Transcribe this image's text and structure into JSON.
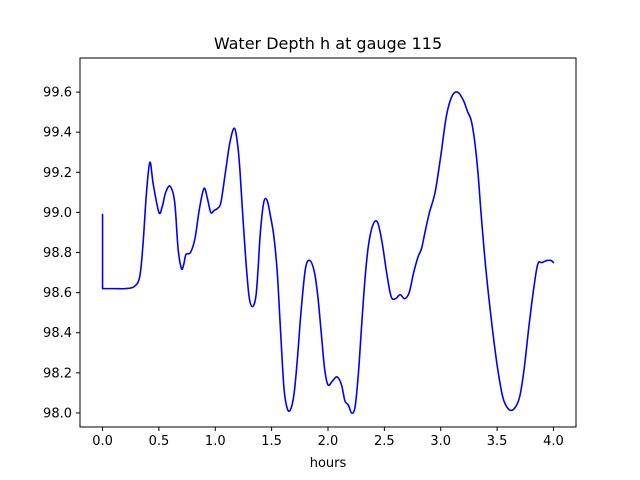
{
  "chart_data": {
    "type": "line",
    "title": "Water Depth h at gauge 115",
    "xlabel": "hours",
    "ylabel": "",
    "xlim": [
      -0.2,
      4.2
    ],
    "ylim": [
      97.93,
      99.77
    ],
    "xticks": [
      0.0,
      0.5,
      1.0,
      1.5,
      2.0,
      2.5,
      3.0,
      3.5,
      4.0
    ],
    "xtick_labels": [
      "0.0",
      "0.5",
      "1.0",
      "1.5",
      "2.0",
      "2.5",
      "3.0",
      "3.5",
      "4.0"
    ],
    "yticks": [
      98.0,
      98.2,
      98.4,
      98.6,
      98.8,
      99.0,
      99.2,
      99.4,
      99.6
    ],
    "ytick_labels": [
      "98.0",
      "98.2",
      "98.4",
      "98.6",
      "98.8",
      "99.0",
      "99.2",
      "99.4",
      "99.6"
    ],
    "grid": false,
    "series": [
      {
        "color": "#0000ff",
        "x": [
          0.0,
          0.0,
          0.1,
          0.2,
          0.28,
          0.33,
          0.36,
          0.39,
          0.42,
          0.45,
          0.5,
          0.53,
          0.56,
          0.6,
          0.64,
          0.67,
          0.7,
          0.72,
          0.74,
          0.78,
          0.82,
          0.86,
          0.9,
          0.93,
          0.96,
          0.99,
          1.02,
          1.05,
          1.09,
          1.13,
          1.17,
          1.2,
          1.22,
          1.24,
          1.27,
          1.3,
          1.33,
          1.36,
          1.38,
          1.4,
          1.43,
          1.46,
          1.49,
          1.52,
          1.55,
          1.58,
          1.61,
          1.64,
          1.67,
          1.7,
          1.73,
          1.76,
          1.8,
          1.84,
          1.88,
          1.91,
          1.94,
          1.97,
          2.0,
          2.04,
          2.08,
          2.12,
          2.15,
          2.18,
          2.21,
          2.24,
          2.27,
          2.3,
          2.33,
          2.36,
          2.4,
          2.44,
          2.48,
          2.52,
          2.56,
          2.6,
          2.64,
          2.68,
          2.72,
          2.76,
          2.8,
          2.83,
          2.86,
          2.9,
          2.95,
          3.0,
          3.05,
          3.1,
          3.15,
          3.2,
          3.24,
          3.27,
          3.3,
          3.33,
          3.36,
          3.4,
          3.45,
          3.5,
          3.55,
          3.6,
          3.65,
          3.7,
          3.74,
          3.78,
          3.82,
          3.86,
          3.9,
          3.94,
          3.98,
          4.0
        ],
        "y": [
          98.99,
          98.62,
          98.62,
          98.62,
          98.63,
          98.68,
          98.85,
          99.1,
          99.25,
          99.14,
          99.0,
          99.03,
          99.1,
          99.13,
          99.05,
          98.82,
          98.72,
          98.74,
          98.79,
          98.8,
          98.87,
          99.02,
          99.12,
          99.07,
          99.0,
          99.01,
          99.02,
          99.05,
          99.2,
          99.35,
          99.42,
          99.33,
          99.2,
          99.02,
          98.77,
          98.58,
          98.53,
          98.58,
          98.72,
          98.9,
          99.05,
          99.06,
          98.98,
          98.88,
          98.7,
          98.4,
          98.12,
          98.02,
          98.02,
          98.1,
          98.28,
          98.5,
          98.72,
          98.76,
          98.7,
          98.58,
          98.4,
          98.22,
          98.14,
          98.16,
          98.18,
          98.14,
          98.06,
          98.04,
          98.0,
          98.03,
          98.2,
          98.45,
          98.68,
          98.84,
          98.94,
          98.95,
          98.85,
          98.7,
          98.58,
          98.57,
          98.59,
          98.57,
          98.6,
          98.7,
          98.78,
          98.82,
          98.9,
          99.0,
          99.1,
          99.28,
          99.48,
          99.58,
          99.6,
          99.56,
          99.5,
          99.46,
          99.36,
          99.2,
          98.98,
          98.72,
          98.46,
          98.24,
          98.08,
          98.02,
          98.02,
          98.08,
          98.22,
          98.42,
          98.6,
          98.74,
          98.75,
          98.76,
          98.76,
          98.75
        ]
      }
    ]
  }
}
